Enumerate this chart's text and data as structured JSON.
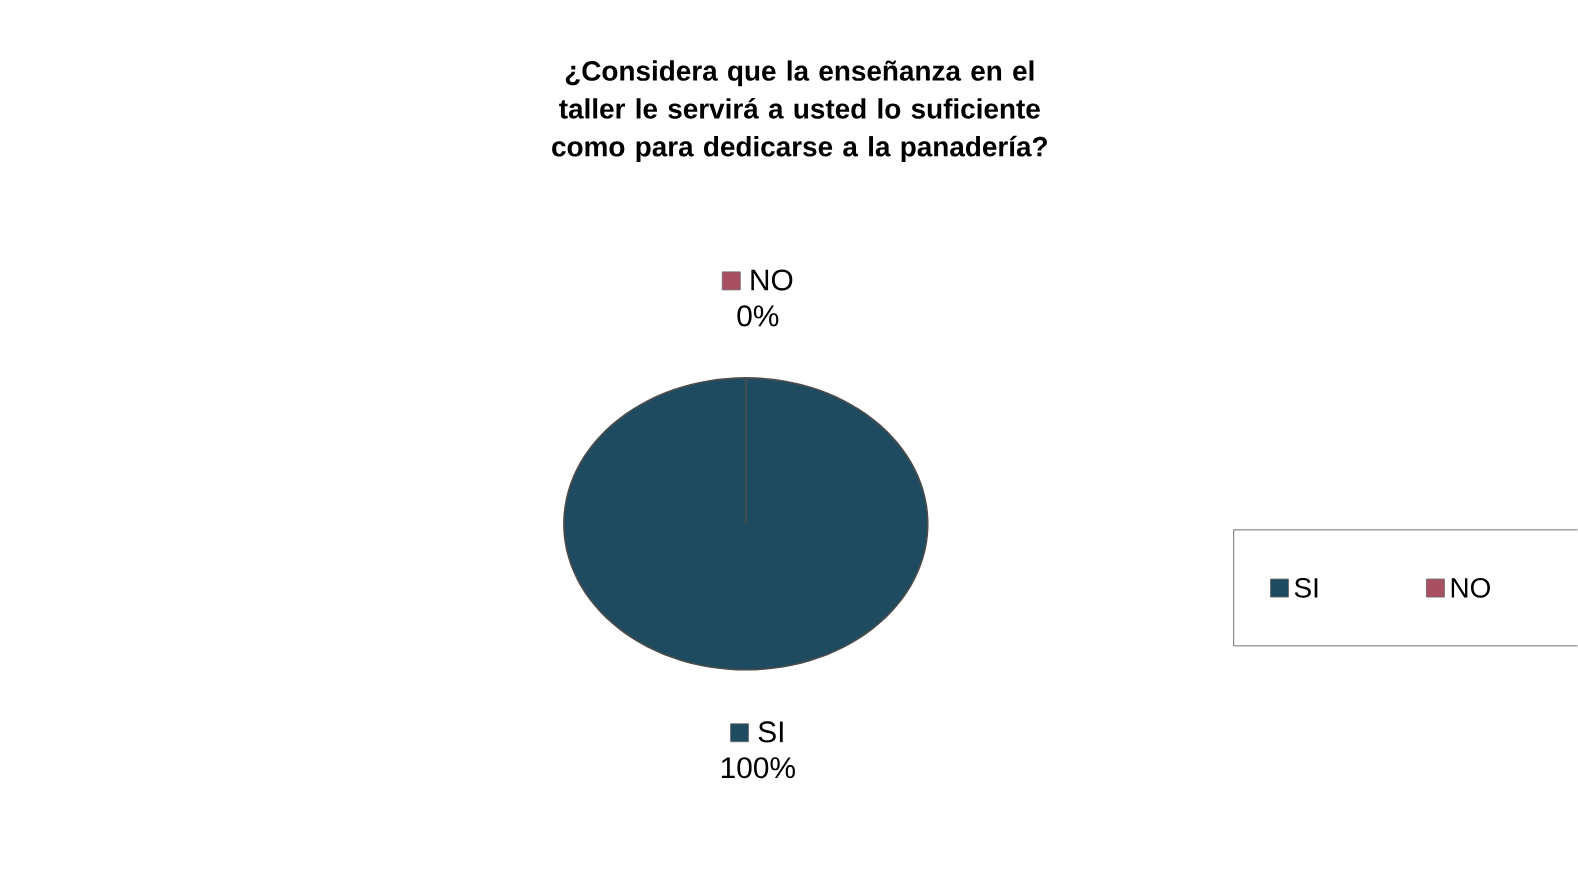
{
  "chart_data": {
    "type": "pie",
    "title": "¿Considera que la enseñanza en el taller le servirá a usted lo suficiente como para dedicarse a la panadería?",
    "categories": [
      "SI",
      "NO"
    ],
    "values": [
      100,
      0
    ],
    "value_labels": [
      "100%",
      "0%"
    ],
    "colors": [
      "#1f4b61",
      "#a84f62"
    ],
    "legend": "right"
  }
}
